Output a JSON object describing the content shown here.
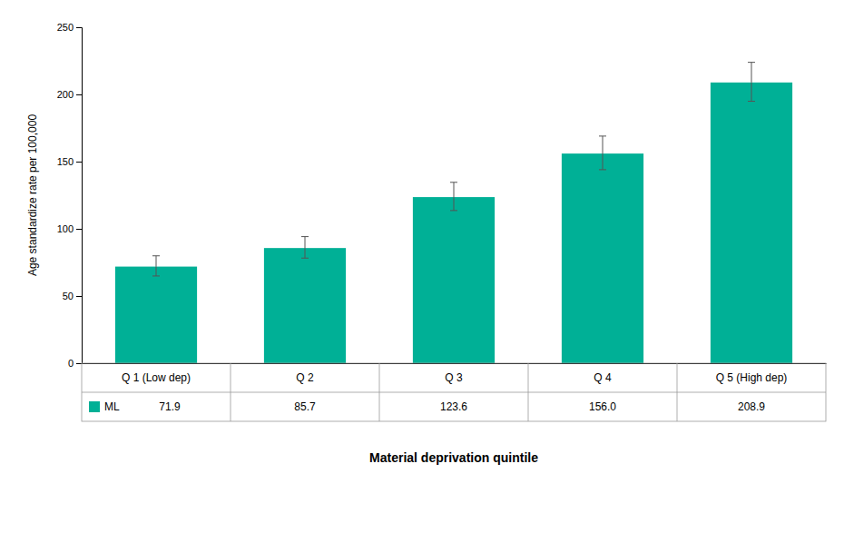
{
  "chart_data": {
    "type": "bar",
    "xlabel": "Material deprivation quintile",
    "ylabel": "Age standardize rate per 100,000",
    "categories": [
      "Q 1 (Low dep)",
      "Q 2",
      "Q 3",
      "Q 4",
      "Q 5 (High dep)"
    ],
    "series": [
      {
        "name": "ML",
        "color": "#00B096",
        "values": [
          71.9,
          85.7,
          123.6,
          156.0,
          208.9
        ],
        "value_labels": [
          "71.9",
          "85.7",
          "123.6",
          "156.0",
          "208.9"
        ],
        "errors_upper": [
          8.0,
          8.5,
          11.0,
          13.0,
          15.0
        ],
        "errors_lower": [
          7.0,
          7.5,
          10.0,
          12.0,
          14.0
        ]
      }
    ],
    "ylim": [
      0,
      250
    ],
    "yticks": [
      0,
      50,
      100,
      150,
      200,
      250
    ],
    "grid": false,
    "data_labels": true
  }
}
